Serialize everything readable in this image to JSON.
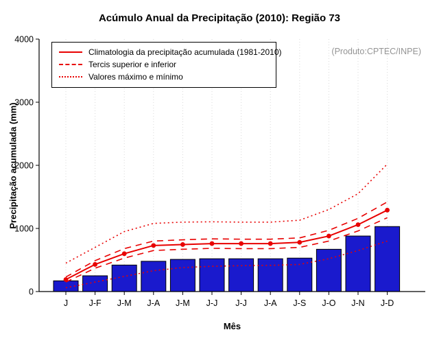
{
  "title": "Acúmulo Anual da Precipitação (2010): Região 73",
  "annotation": "(Produto:CPTEC/INPE)",
  "legend": {
    "items": [
      {
        "label": "Climatologia da precipitação acumulada (1981-2010)",
        "style": "solid"
      },
      {
        "label": "Tercis superior e inferior",
        "style": "dashed"
      },
      {
        "label": "Valores máximo e mínimo",
        "style": "dotted"
      }
    ]
  },
  "chart_data": {
    "type": "bar",
    "subtype": "bar-line-composite",
    "title": "Acúmulo Anual da Precipitação (2010): Região 73",
    "xlabel": "Mês",
    "ylabel": "Precipitação acumulada (mm)",
    "ylim": [
      0,
      4000
    ],
    "yticks": [
      0,
      1000,
      2000,
      3000,
      4000
    ],
    "grid": "vertical-dotted",
    "legend_position": "top-left",
    "categories": [
      "J",
      "J-F",
      "J-M",
      "J-A",
      "J-M",
      "J-J",
      "J-J",
      "J-A",
      "J-S",
      "J-O",
      "J-N",
      "J-D"
    ],
    "bars": {
      "values": [
        170,
        250,
        420,
        480,
        510,
        520,
        520,
        520,
        530,
        670,
        880,
        1030
      ],
      "color": "#1a1acd",
      "border_color": "#000000"
    },
    "line_color": "#e80000",
    "series": [
      {
        "name": "Climatologia da precipitação acumulada (1981-2010)",
        "style": "solid",
        "marker": true,
        "values": [
          190,
          430,
          600,
          730,
          745,
          760,
          760,
          760,
          780,
          880,
          1060,
          1290
        ]
      },
      {
        "name": "Tercil superior",
        "style": "dashed",
        "marker": false,
        "values": [
          230,
          490,
          680,
          800,
          820,
          835,
          830,
          830,
          850,
          970,
          1160,
          1420
        ]
      },
      {
        "name": "Tercil inferior",
        "style": "dashed",
        "marker": false,
        "values": [
          150,
          370,
          530,
          650,
          670,
          685,
          680,
          680,
          700,
          800,
          960,
          1170
        ]
      },
      {
        "name": "Valor máximo",
        "style": "dotted",
        "marker": false,
        "values": [
          450,
          700,
          950,
          1080,
          1100,
          1105,
          1100,
          1100,
          1130,
          1300,
          1550,
          2020
        ]
      },
      {
        "name": "Valor mínimo",
        "style": "dotted",
        "marker": false,
        "values": [
          60,
          150,
          240,
          330,
          380,
          400,
          410,
          415,
          430,
          520,
          650,
          800
        ]
      }
    ]
  }
}
